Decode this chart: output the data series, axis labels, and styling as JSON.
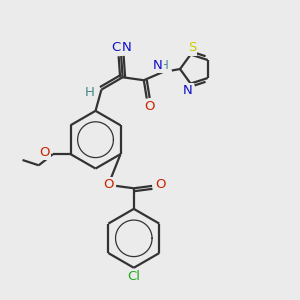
{
  "background_color": "#ebebeb",
  "bond_color": "#333333",
  "bond_width": 1.6,
  "atom_colors": {
    "C": "#333333",
    "N": "#1010cc",
    "O": "#cc2200",
    "S": "#cccc00",
    "Cl": "#22aa22",
    "H": "#448888"
  }
}
